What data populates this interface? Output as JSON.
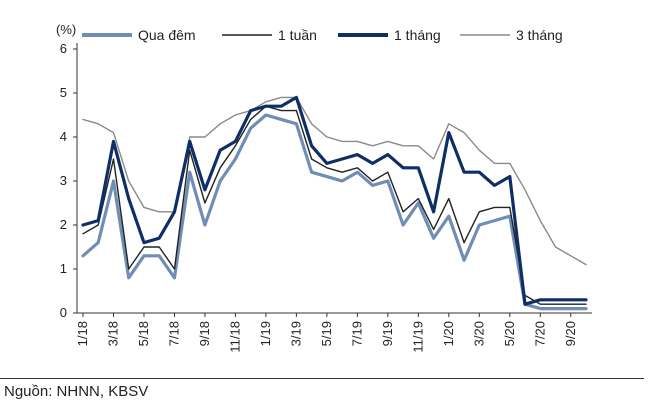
{
  "chart_data": {
    "type": "line",
    "title": "",
    "xlabel": "",
    "ylabel": "(%)",
    "ylim": [
      0,
      6
    ],
    "yticks": [
      0,
      1,
      2,
      3,
      4,
      5,
      6
    ],
    "x_range": [
      "1/18",
      "10/20"
    ],
    "xticks": [
      "1/18",
      "3/18",
      "5/18",
      "7/18",
      "9/18",
      "11/18",
      "1/19",
      "3/19",
      "5/19",
      "7/19",
      "9/19",
      "11/19",
      "1/20",
      "3/20",
      "5/20",
      "7/20",
      "9/20"
    ],
    "grid": false,
    "legend_position": "top",
    "x": [
      "1/18",
      "2/18",
      "3/18",
      "4/18",
      "5/18",
      "6/18",
      "7/18",
      "8/18",
      "9/18",
      "10/18",
      "11/18",
      "12/18",
      "1/19",
      "2/19",
      "3/19",
      "4/19",
      "5/19",
      "6/19",
      "7/19",
      "8/19",
      "9/19",
      "10/19",
      "11/19",
      "12/19",
      "1/20",
      "2/20",
      "3/20",
      "4/20",
      "5/20",
      "6/20",
      "7/20",
      "8/20",
      "9/20",
      "10/20"
    ],
    "series": [
      {
        "name": "Qua đêm",
        "color": "#6f8db5",
        "style": "thick",
        "values": [
          1.3,
          1.6,
          3.0,
          0.8,
          1.3,
          1.3,
          0.8,
          3.2,
          2.0,
          3.0,
          3.5,
          4.2,
          4.5,
          4.4,
          4.3,
          3.2,
          3.1,
          3.0,
          3.2,
          2.9,
          3.0,
          2.0,
          2.5,
          1.7,
          2.2,
          1.2,
          2.0,
          2.1,
          2.2,
          0.2,
          0.1,
          0.1,
          0.1,
          0.1
        ]
      },
      {
        "name": "1 tuần",
        "color": "#222222",
        "style": "thin",
        "values": [
          1.8,
          2.0,
          3.5,
          1.0,
          1.5,
          1.5,
          1.0,
          3.7,
          2.5,
          3.3,
          3.8,
          4.4,
          4.7,
          4.6,
          4.6,
          3.5,
          3.3,
          3.2,
          3.3,
          3.0,
          3.2,
          2.3,
          2.6,
          1.9,
          2.6,
          1.6,
          2.3,
          2.4,
          2.4,
          0.4,
          0.2,
          0.2,
          0.2,
          0.2
        ]
      },
      {
        "name": "1 tháng",
        "color": "#0f2e66",
        "style": "thick",
        "values": [
          2.0,
          2.1,
          3.9,
          2.6,
          1.6,
          1.7,
          2.3,
          3.9,
          2.8,
          3.7,
          3.9,
          4.6,
          4.7,
          4.7,
          4.9,
          3.8,
          3.4,
          3.5,
          3.6,
          3.4,
          3.6,
          3.3,
          3.3,
          2.3,
          4.1,
          3.2,
          3.2,
          2.9,
          3.1,
          0.2,
          0.3,
          0.3,
          0.3,
          0.3
        ]
      },
      {
        "name": "3 tháng",
        "color": "#8a8a8a",
        "style": "thin",
        "values": [
          4.4,
          4.3,
          4.1,
          3.0,
          2.4,
          2.3,
          2.3,
          4.0,
          4.0,
          4.3,
          4.5,
          4.6,
          4.8,
          4.9,
          4.9,
          4.3,
          4.0,
          3.9,
          3.9,
          3.8,
          3.9,
          3.8,
          3.8,
          3.5,
          4.3,
          4.1,
          3.7,
          3.4,
          3.4,
          2.8,
          2.1,
          1.5,
          1.3,
          1.1
        ]
      }
    ]
  },
  "source": "Nguồn:  NHNN, KBSV"
}
